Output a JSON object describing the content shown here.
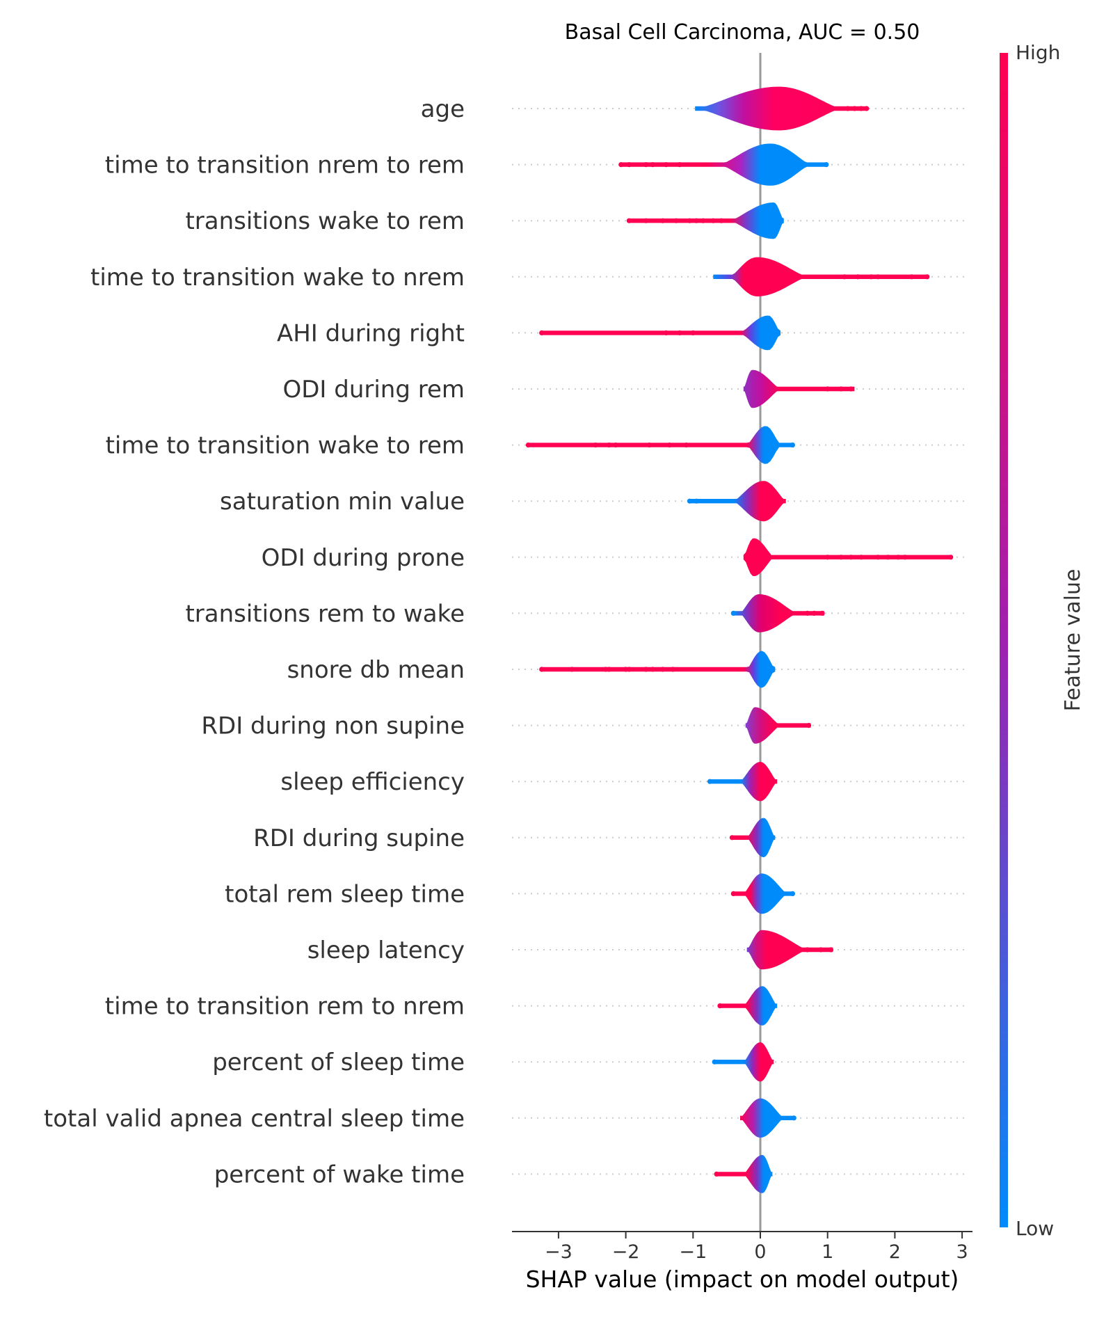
{
  "chart_data": {
    "type": "violin",
    "title": "Basal Cell Carcinoma, AUC =  0.50",
    "xlabel": "SHAP value (impact on model output)",
    "xlim": [
      -3.7,
      3.15
    ],
    "x_ticks": [
      -3,
      -2,
      -1,
      0,
      1,
      2,
      3
    ],
    "x_tick_labels": [
      "−3",
      "−2",
      "−1",
      "0",
      "1",
      "2",
      "3"
    ],
    "colorbar": {
      "label": "Feature value",
      "high_label": "High",
      "low_label": "Low",
      "high_color": "#ff0052",
      "low_color": "#008bfb",
      "mid_color": "#a020b0"
    },
    "features": [
      {
        "name": "age",
        "min": -0.97,
        "max": 1.58,
        "body": [
          -0.95,
          1.2
        ],
        "peak": 0.28,
        "height": 0.78,
        "colors": [
          [
            -0.97,
            "#008bfb"
          ],
          [
            -0.6,
            "#7050e0"
          ],
          [
            -0.25,
            "#c010a0"
          ],
          [
            0.2,
            "#ff0060"
          ],
          [
            1.58,
            "#ff0052"
          ]
        ],
        "outliers": [
          [
            1.3,
            "#ff0052"
          ],
          [
            1.4,
            "#ff0052"
          ],
          [
            1.5,
            "#ff0052"
          ],
          [
            1.58,
            "#ff0052"
          ]
        ]
      },
      {
        "name": "time to transition nrem to rem",
        "min": -2.07,
        "max": 1.0,
        "body": [
          -0.6,
          0.75
        ],
        "peak": 0.15,
        "height": 0.75,
        "colors": [
          [
            -2.07,
            "#ff0052"
          ],
          [
            -0.8,
            "#ff0052"
          ],
          [
            -0.3,
            "#b020c0"
          ],
          [
            0.0,
            "#008bfb"
          ],
          [
            1.0,
            "#008bfb"
          ]
        ],
        "outliers": [
          [
            -2.07,
            "#ff0052"
          ],
          [
            -1.95,
            "#ff0052"
          ],
          [
            -1.7,
            "#ff0052"
          ],
          [
            -1.6,
            "#ff0052"
          ],
          [
            -1.4,
            "#ff0052"
          ],
          [
            -1.2,
            "#ff0052"
          ],
          [
            0.98,
            "#008bfb"
          ]
        ]
      },
      {
        "name": "transitions wake to rem",
        "min": -1.95,
        "max": 0.35,
        "body": [
          -0.45,
          0.35
        ],
        "peak": 0.2,
        "height": 0.65,
        "colors": [
          [
            -1.95,
            "#ff0052"
          ],
          [
            -0.45,
            "#ff0052"
          ],
          [
            -0.2,
            "#7040d0"
          ],
          [
            0.0,
            "#008bfb"
          ],
          [
            0.35,
            "#008bfb"
          ]
        ],
        "outliers": [
          [
            -1.95,
            "#ff0052"
          ],
          [
            -1.7,
            "#ff0052"
          ],
          [
            -1.45,
            "#ff0052"
          ],
          [
            -1.25,
            "#ff0052"
          ],
          [
            -1.05,
            "#ff0052"
          ],
          [
            -0.95,
            "#ff0052"
          ],
          [
            -0.85,
            "#ff0052"
          ],
          [
            -0.7,
            "#ff0052"
          ],
          [
            -0.58,
            "#ff0052"
          ]
        ]
      },
      {
        "name": "time to transition wake to nrem",
        "min": -0.7,
        "max": 2.5,
        "body": [
          -0.45,
          0.7
        ],
        "peak": -0.05,
        "height": 0.7,
        "colors": [
          [
            -0.7,
            "#008bfb"
          ],
          [
            -0.45,
            "#6040e0"
          ],
          [
            -0.25,
            "#ff0052"
          ],
          [
            2.5,
            "#ff0052"
          ]
        ],
        "outliers": [
          [
            1.25,
            "#ff0052"
          ],
          [
            1.45,
            "#ff0052"
          ],
          [
            1.65,
            "#ff0052"
          ],
          [
            1.75,
            "#ff0052"
          ],
          [
            2.25,
            "#ff0052"
          ],
          [
            2.48,
            "#ff0052"
          ]
        ]
      },
      {
        "name": "AHI during right",
        "min": -3.25,
        "max": 0.3,
        "body": [
          -0.3,
          0.3
        ],
        "peak": 0.12,
        "height": 0.62,
        "colors": [
          [
            -3.25,
            "#ff0052"
          ],
          [
            -0.3,
            "#ff0052"
          ],
          [
            -0.15,
            "#6040e0"
          ],
          [
            0.0,
            "#008bfb"
          ],
          [
            0.3,
            "#008bfb"
          ]
        ],
        "outliers": [
          [
            -3.25,
            "#ff0052"
          ],
          [
            -1.4,
            "#ff0052"
          ],
          [
            -1.2,
            "#ff0052"
          ],
          [
            -1.0,
            "#ff0052"
          ]
        ]
      },
      {
        "name": "ODI during rem",
        "min": -0.25,
        "max": 1.4,
        "body": [
          -0.25,
          0.3
        ],
        "peak": -0.12,
        "height": 0.68,
        "colors": [
          [
            -0.25,
            "#9030c0"
          ],
          [
            0.0,
            "#c010a0"
          ],
          [
            0.3,
            "#ff0052"
          ],
          [
            1.4,
            "#ff0052"
          ]
        ],
        "outliers": [
          [
            1.0,
            "#ff0052"
          ],
          [
            1.2,
            "#ff0052"
          ],
          [
            1.35,
            "#ff0052"
          ]
        ]
      },
      {
        "name": "time to transition wake to rem",
        "min": -3.45,
        "max": 0.5,
        "body": [
          -0.2,
          0.3
        ],
        "peak": 0.08,
        "height": 0.68,
        "colors": [
          [
            -3.45,
            "#ff0052"
          ],
          [
            -0.2,
            "#ff0052"
          ],
          [
            -0.05,
            "#7040d0"
          ],
          [
            0.05,
            "#008bfb"
          ],
          [
            0.5,
            "#008bfb"
          ]
        ],
        "outliers": [
          [
            -3.45,
            "#ff0052"
          ],
          [
            -2.45,
            "#ff0052"
          ],
          [
            -2.25,
            "#ff0052"
          ],
          [
            -2.15,
            "#ff0052"
          ],
          [
            -1.65,
            "#ff0052"
          ],
          [
            -1.35,
            "#ff0052"
          ],
          [
            -1.1,
            "#ff0052"
          ],
          [
            0.48,
            "#008bfb"
          ]
        ]
      },
      {
        "name": "saturation min value",
        "min": -1.05,
        "max": 0.38,
        "body": [
          -0.4,
          0.38
        ],
        "peak": 0.05,
        "height": 0.72,
        "colors": [
          [
            -1.05,
            "#008bfb"
          ],
          [
            -0.4,
            "#008bfb"
          ],
          [
            -0.2,
            "#8030c0"
          ],
          [
            0.0,
            "#ff0052"
          ],
          [
            0.38,
            "#ff0052"
          ]
        ],
        "outliers": [
          [
            -1.05,
            "#008bfb"
          ],
          [
            -0.95,
            "#008bfb"
          ]
        ]
      },
      {
        "name": "ODI during prone",
        "min": -0.25,
        "max": 2.85,
        "body": [
          -0.25,
          0.2
        ],
        "peak": -0.1,
        "height": 0.68,
        "colors": [
          [
            -0.25,
            "#ff0052"
          ],
          [
            2.85,
            "#ff0052"
          ]
        ],
        "outliers": [
          [
            1.0,
            "#ff0052"
          ],
          [
            1.2,
            "#ff0052"
          ],
          [
            1.35,
            "#ff0052"
          ],
          [
            1.5,
            "#ff0052"
          ],
          [
            1.75,
            "#ff0052"
          ],
          [
            1.9,
            "#ff0052"
          ],
          [
            2.05,
            "#ff0052"
          ],
          [
            2.15,
            "#ff0052"
          ],
          [
            2.83,
            "#ff0052"
          ]
        ]
      },
      {
        "name": "transitions rem to wake",
        "min": -0.4,
        "max": 0.95,
        "body": [
          -0.3,
          0.55
        ],
        "peak": -0.02,
        "height": 0.68,
        "colors": [
          [
            -0.4,
            "#008bfb"
          ],
          [
            -0.2,
            "#8030c0"
          ],
          [
            0.0,
            "#e00070"
          ],
          [
            0.3,
            "#ff0052"
          ],
          [
            0.95,
            "#ff0052"
          ]
        ],
        "outliers": [
          [
            -0.4,
            "#008bfb"
          ],
          [
            0.7,
            "#ff0052"
          ],
          [
            0.8,
            "#ff0052"
          ],
          [
            0.92,
            "#ff0052"
          ]
        ]
      },
      {
        "name": "snore db mean",
        "min": -3.25,
        "max": 0.22,
        "body": [
          -0.2,
          0.22
        ],
        "peak": 0.02,
        "height": 0.66,
        "colors": [
          [
            -3.25,
            "#ff0052"
          ],
          [
            -0.25,
            "#ff0052"
          ],
          [
            -0.1,
            "#6040e0"
          ],
          [
            0.0,
            "#008bfb"
          ],
          [
            0.22,
            "#008bfb"
          ]
        ],
        "outliers": [
          [
            -3.25,
            "#ff0052"
          ],
          [
            -2.8,
            "#ff0052"
          ],
          [
            -2.3,
            "#ff0052"
          ],
          [
            -2.25,
            "#ff0052"
          ],
          [
            -2.0,
            "#ff0052"
          ],
          [
            -1.95,
            "#ff0052"
          ],
          [
            -1.7,
            "#ff0052"
          ],
          [
            -1.6,
            "#ff0052"
          ],
          [
            -1.45,
            "#ff0052"
          ],
          [
            -1.3,
            "#ff0052"
          ]
        ]
      },
      {
        "name": "RDI during non supine",
        "min": -0.22,
        "max": 0.75,
        "body": [
          -0.22,
          0.3
        ],
        "peak": -0.08,
        "height": 0.65,
        "colors": [
          [
            -0.22,
            "#8040d0"
          ],
          [
            0.0,
            "#d01080"
          ],
          [
            0.2,
            "#ff0052"
          ],
          [
            0.75,
            "#ff0052"
          ]
        ],
        "outliers": [
          [
            0.72,
            "#ff0052"
          ]
        ]
      },
      {
        "name": "sleep efficiency",
        "min": -0.75,
        "max": 0.25,
        "body": [
          -0.3,
          0.25
        ],
        "peak": 0.0,
        "height": 0.7,
        "colors": [
          [
            -0.75,
            "#008bfb"
          ],
          [
            -0.3,
            "#008bfb"
          ],
          [
            -0.15,
            "#a020b0"
          ],
          [
            0.0,
            "#ff0052"
          ],
          [
            0.25,
            "#ff0052"
          ]
        ],
        "outliers": [
          [
            -0.75,
            "#008bfb"
          ]
        ]
      },
      {
        "name": "RDI during supine",
        "min": -0.42,
        "max": 0.22,
        "body": [
          -0.2,
          0.22
        ],
        "peak": 0.05,
        "height": 0.7,
        "colors": [
          [
            -0.42,
            "#ff0052"
          ],
          [
            -0.2,
            "#ff0052"
          ],
          [
            -0.05,
            "#8030c0"
          ],
          [
            0.05,
            "#008bfb"
          ],
          [
            0.22,
            "#008bfb"
          ]
        ],
        "outliers": [
          [
            -0.42,
            "#ff0052"
          ]
        ]
      },
      {
        "name": "total rem sleep time",
        "min": -0.4,
        "max": 0.5,
        "body": [
          -0.25,
          0.4
        ],
        "peak": 0.02,
        "height": 0.72,
        "colors": [
          [
            -0.4,
            "#ff0052"
          ],
          [
            -0.15,
            "#ff0052"
          ],
          [
            -0.05,
            "#7040d0"
          ],
          [
            0.05,
            "#008bfb"
          ],
          [
            0.5,
            "#008bfb"
          ]
        ],
        "outliers": [
          [
            -0.4,
            "#ff0052"
          ],
          [
            0.48,
            "#008bfb"
          ]
        ]
      },
      {
        "name": "sleep latency",
        "min": -0.2,
        "max": 1.08,
        "body": [
          -0.2,
          0.7
        ],
        "peak": 0.02,
        "height": 0.7,
        "colors": [
          [
            -0.2,
            "#7040d0"
          ],
          [
            -0.05,
            "#d01080"
          ],
          [
            0.1,
            "#ff0052"
          ],
          [
            1.08,
            "#ff0052"
          ]
        ],
        "outliers": [
          [
            0.7,
            "#ff0052"
          ],
          [
            0.9,
            "#ff0052"
          ],
          [
            1.05,
            "#ff0052"
          ]
        ]
      },
      {
        "name": "time to transition rem to nrem",
        "min": -0.6,
        "max": 0.25,
        "body": [
          -0.25,
          0.25
        ],
        "peak": 0.03,
        "height": 0.7,
        "colors": [
          [
            -0.6,
            "#ff0052"
          ],
          [
            -0.2,
            "#ff0052"
          ],
          [
            -0.05,
            "#8030c0"
          ],
          [
            0.05,
            "#008bfb"
          ],
          [
            0.25,
            "#008bfb"
          ]
        ],
        "outliers": [
          [
            -0.6,
            "#ff0052"
          ]
        ]
      },
      {
        "name": "percent of sleep time",
        "min": -0.68,
        "max": 0.2,
        "body": [
          -0.25,
          0.2
        ],
        "peak": 0.0,
        "height": 0.7,
        "colors": [
          [
            -0.68,
            "#008bfb"
          ],
          [
            -0.25,
            "#008bfb"
          ],
          [
            -0.1,
            "#a020b0"
          ],
          [
            0.0,
            "#ff0052"
          ],
          [
            0.2,
            "#ff0052"
          ]
        ],
        "outliers": [
          [
            -0.68,
            "#008bfb"
          ]
        ]
      },
      {
        "name": "total valid apnea central sleep time",
        "min": -0.3,
        "max": 0.5,
        "body": [
          -0.3,
          0.35
        ],
        "peak": 0.0,
        "height": 0.7,
        "colors": [
          [
            -0.3,
            "#ff0052"
          ],
          [
            -0.1,
            "#b020b0"
          ],
          [
            0.05,
            "#008bfb"
          ],
          [
            0.5,
            "#008bfb"
          ]
        ],
        "outliers": [
          [
            0.5,
            "#008bfb"
          ]
        ]
      },
      {
        "name": "percent of wake time",
        "min": -0.65,
        "max": 0.18,
        "body": [
          -0.25,
          0.18
        ],
        "peak": 0.03,
        "height": 0.68,
        "colors": [
          [
            -0.65,
            "#ff0052"
          ],
          [
            -0.2,
            "#ff0052"
          ],
          [
            -0.05,
            "#8030c0"
          ],
          [
            0.05,
            "#008bfb"
          ],
          [
            0.18,
            "#008bfb"
          ]
        ],
        "outliers": [
          [
            -0.65,
            "#ff0052"
          ]
        ]
      }
    ]
  }
}
